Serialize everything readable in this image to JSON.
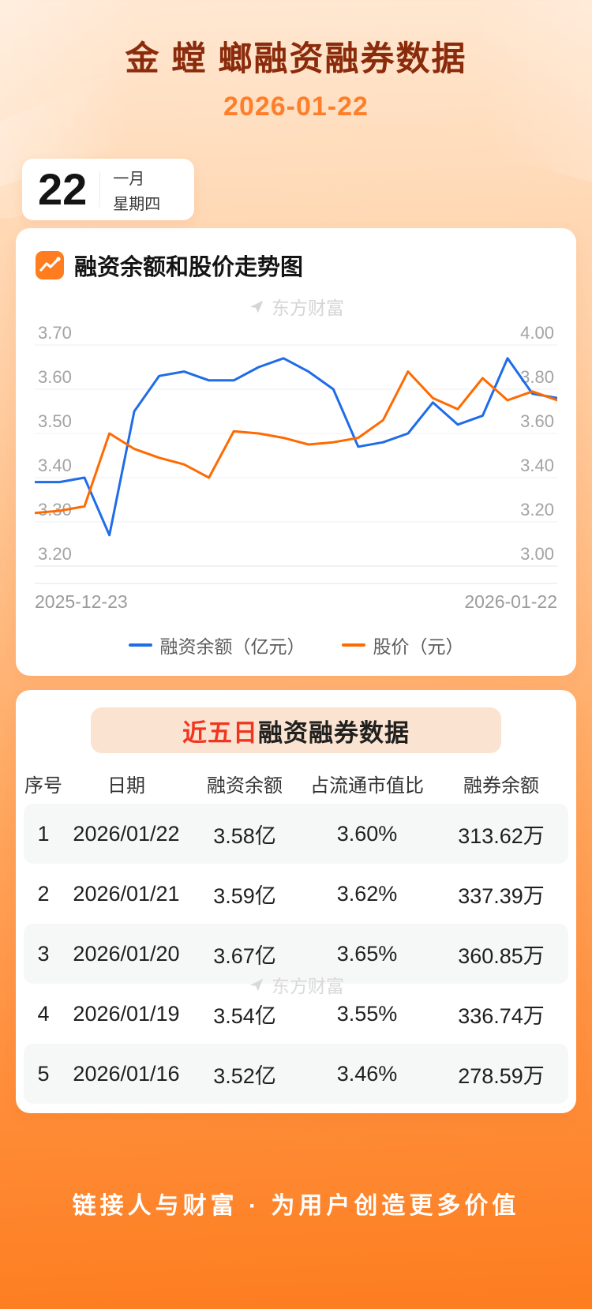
{
  "page": {
    "title": "金 螳 螂融资融券数据",
    "date": "2026-01-22"
  },
  "date_card": {
    "day": "22",
    "month": "一月",
    "weekday": "星期四"
  },
  "chart_card": {
    "title": "融资余额和股价走势图",
    "watermark": "东方财富",
    "x_start_label": "2025-12-23",
    "x_end_label": "2026-01-22"
  },
  "chart_data": {
    "type": "line",
    "title": "融资余额和股价走势图",
    "x": [
      "2025-12-23",
      "2025-12-24",
      "2025-12-25",
      "2025-12-26",
      "2025-12-29",
      "2025-12-30",
      "2025-12-31",
      "2026-01-02",
      "2026-01-05",
      "2026-01-06",
      "2026-01-07",
      "2026-01-08",
      "2026-01-09",
      "2026-01-12",
      "2026-01-13",
      "2026-01-14",
      "2026-01-15",
      "2026-01-16",
      "2026-01-19",
      "2026-01-20",
      "2026-01-21",
      "2026-01-22"
    ],
    "series": [
      {
        "name": "融资余额（亿元）",
        "axis": "left",
        "color": "#1f6ce8",
        "values": [
          3.39,
          3.39,
          3.4,
          3.27,
          3.55,
          3.63,
          3.64,
          3.62,
          3.62,
          3.65,
          3.67,
          3.64,
          3.6,
          3.47,
          3.48,
          3.5,
          3.57,
          3.52,
          3.54,
          3.67,
          3.59,
          3.58
        ]
      },
      {
        "name": "股价（元）",
        "axis": "right",
        "color": "#ff6a00",
        "values": [
          3.24,
          3.25,
          3.27,
          3.6,
          3.53,
          3.49,
          3.46,
          3.4,
          3.61,
          3.6,
          3.58,
          3.55,
          3.56,
          3.58,
          3.66,
          3.88,
          3.76,
          3.71,
          3.85,
          3.75,
          3.79,
          3.75
        ]
      }
    ],
    "left_axis": {
      "min": 3.2,
      "max": 3.7,
      "ticks": [
        3.7,
        3.6,
        3.5,
        3.4,
        3.3,
        3.2
      ]
    },
    "right_axis": {
      "min": 3.0,
      "max": 4.0,
      "ticks": [
        4.0,
        3.8,
        3.6,
        3.4,
        3.2,
        3.0
      ]
    },
    "grid": true,
    "legend_position": "bottom"
  },
  "table_card": {
    "title_highlight": "近五日",
    "title_rest": "融资融券数据",
    "watermark": "东方财富",
    "columns": [
      "序号",
      "日期",
      "融资余额",
      "占流通市值比",
      "融券余额"
    ],
    "rows": [
      [
        "1",
        "2026/01/22",
        "3.58亿",
        "3.60%",
        "313.62万"
      ],
      [
        "2",
        "2026/01/21",
        "3.59亿",
        "3.62%",
        "337.39万"
      ],
      [
        "3",
        "2026/01/20",
        "3.67亿",
        "3.65%",
        "360.85万"
      ],
      [
        "4",
        "2026/01/19",
        "3.54亿",
        "3.55%",
        "336.74万"
      ],
      [
        "5",
        "2026/01/16",
        "3.52亿",
        "3.46%",
        "278.59万"
      ]
    ]
  },
  "footer": {
    "slogan": "链接人与财富 · 为用户创造更多价值"
  },
  "colors": {
    "accent_orange": "#ff6a00",
    "title_maroon": "#8a2b0c",
    "date_orange": "#ff7e2a",
    "line_blue": "#1f6ce8",
    "banner_peach": "#fbe3d2",
    "title_highlight_red": "#f0361f",
    "row_stripe": "#f6f7f7"
  }
}
